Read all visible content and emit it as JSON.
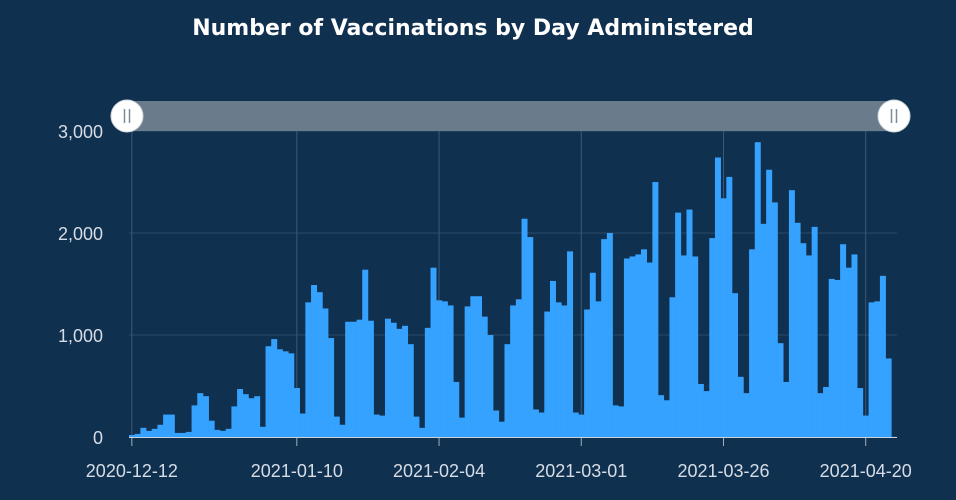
{
  "chart_data": {
    "type": "bar",
    "title": "Number of Vaccinations by Day Administered",
    "xlabel": "",
    "ylabel": "",
    "ylim": [
      0,
      3000
    ],
    "yticks": [
      0,
      1000,
      2000,
      3000
    ],
    "ytick_labels": [
      "0",
      "1,000",
      "2,000",
      "3,000"
    ],
    "xticks": [
      "2020-12-12",
      "2021-01-10",
      "2021-02-04",
      "2021-03-01",
      "2021-03-26",
      "2021-04-20"
    ],
    "x_start": "2020-12-12",
    "x_end": "2021-04-25",
    "grid": true,
    "bar_color": "#35a2ff",
    "values": [
      20,
      30,
      90,
      60,
      80,
      120,
      220,
      220,
      40,
      40,
      50,
      310,
      430,
      400,
      160,
      70,
      60,
      80,
      300,
      470,
      420,
      380,
      400,
      100,
      890,
      960,
      860,
      840,
      820,
      480,
      230,
      1320,
      1490,
      1420,
      1260,
      970,
      200,
      120,
      1130,
      1130,
      1150,
      1640,
      1140,
      220,
      210,
      1160,
      1120,
      1060,
      1090,
      910,
      200,
      90,
      1070,
      1660,
      1340,
      1330,
      1290,
      540,
      190,
      1280,
      1380,
      1380,
      1180,
      1000,
      260,
      150,
      910,
      1290,
      1350,
      2140,
      1960,
      270,
      240,
      1230,
      1530,
      1320,
      1290,
      1820,
      240,
      220,
      1250,
      1610,
      1330,
      1940,
      2000,
      310,
      300,
      1750,
      1770,
      1790,
      1840,
      1710,
      2500,
      410,
      360,
      1370,
      2200,
      1780,
      2230,
      1770,
      520,
      450,
      1950,
      2740,
      2340,
      2550,
      1410,
      590,
      430,
      1840,
      2890,
      2090,
      2620,
      2300,
      920,
      540,
      2420,
      2100,
      1900,
      1780,
      2060,
      430,
      490,
      1550,
      1540,
      1890,
      1660,
      1790,
      480,
      210,
      1320,
      1330,
      1580,
      770
    ],
    "range_selector": {
      "start": "2020-12-12",
      "end": "2021-04-25"
    },
    "background_color": "#10304f",
    "selector_color": "#6a7b8b"
  }
}
